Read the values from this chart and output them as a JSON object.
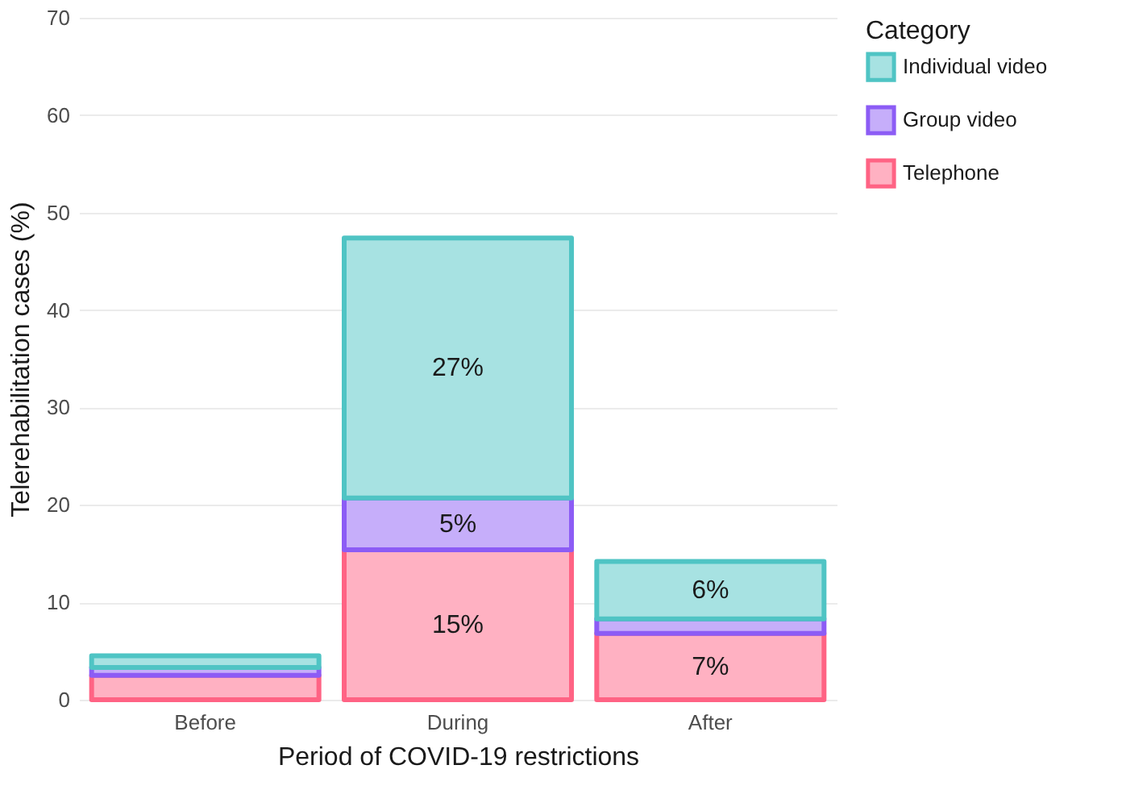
{
  "chart_data": {
    "type": "bar",
    "stacked": true,
    "xlabel": "Period of COVID-19 restrictions",
    "ylabel": "Telerehabilitation cases (%)",
    "legend_title": "Category",
    "legend": "right",
    "grid": "y",
    "categories": [
      "Before",
      "During",
      "After"
    ],
    "ylim": [
      0,
      70
    ],
    "yticks": [
      0,
      10,
      20,
      30,
      40,
      50,
      60,
      70
    ],
    "series": [
      {
        "name": "Telephone",
        "color": "#ff6384",
        "values": [
          2.5,
          15.4,
          6.8
        ],
        "value_labels": [
          null,
          "15%",
          "7%"
        ]
      },
      {
        "name": "Group video",
        "color": "#8c5cf5",
        "values": [
          0.8,
          5.3,
          1.5
        ],
        "value_labels": [
          null,
          "5%",
          null
        ]
      },
      {
        "name": "Individual video",
        "color": "#4fc4c4",
        "values": [
          1.2,
          26.7,
          5.9
        ],
        "value_labels": [
          null,
          "27%",
          "6%"
        ]
      }
    ]
  }
}
